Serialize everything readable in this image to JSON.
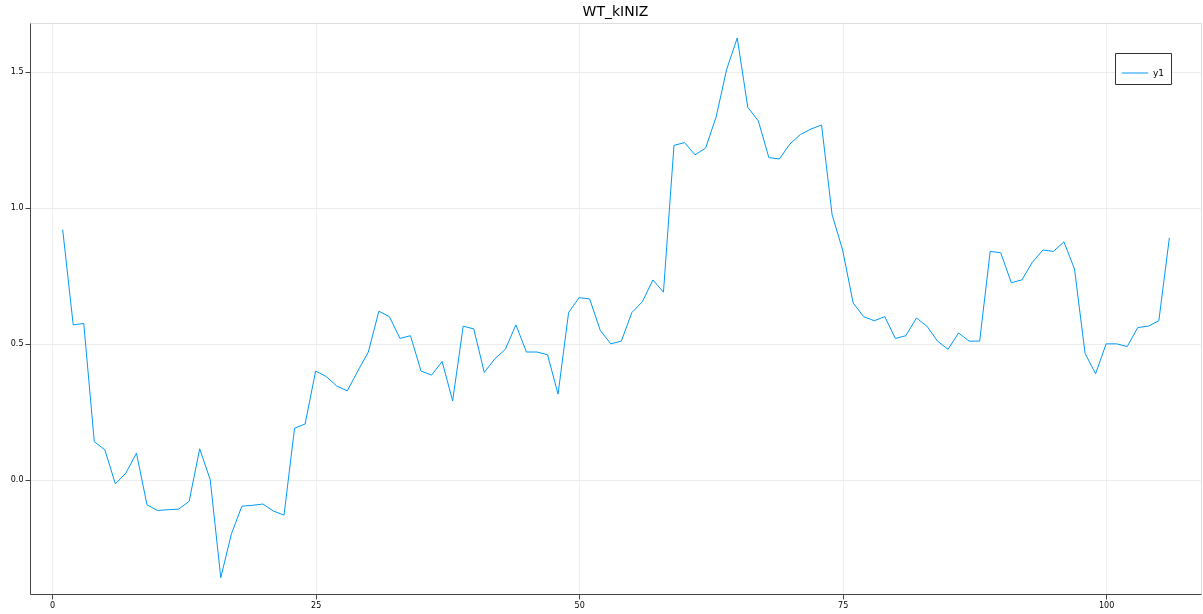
{
  "chart_data": {
    "type": "line",
    "title": "WT_kINIZ",
    "x": [
      1,
      2,
      3,
      4,
      5,
      6,
      7,
      8,
      9,
      10,
      11,
      12,
      13,
      14,
      15,
      16,
      17,
      18,
      19,
      20,
      21,
      22,
      23,
      24,
      25,
      26,
      27,
      28,
      29,
      30,
      31,
      32,
      33,
      34,
      35,
      36,
      37,
      38,
      39,
      40,
      41,
      42,
      43,
      44,
      45,
      46,
      47,
      48,
      49,
      50,
      51,
      52,
      53,
      54,
      55,
      56,
      57,
      58,
      59,
      60,
      61,
      62,
      63,
      64,
      65,
      66,
      67,
      68,
      69,
      70,
      71,
      72,
      73,
      74,
      75,
      76,
      77,
      78,
      79,
      80,
      81,
      82,
      83,
      84,
      85,
      86,
      87,
      88,
      89,
      90,
      91,
      92,
      93,
      94,
      95,
      96,
      97,
      98,
      99,
      100,
      101,
      102,
      103,
      104,
      105,
      106
    ],
    "series": [
      {
        "name": "y1",
        "color": "#009af9",
        "values": [
          0.92,
          0.57,
          0.575,
          0.14,
          0.11,
          -0.015,
          0.025,
          0.098,
          -0.092,
          -0.113,
          -0.11,
          -0.108,
          -0.079,
          0.114,
          0.0,
          -0.36,
          -0.2,
          -0.097,
          -0.094,
          -0.089,
          -0.115,
          -0.13,
          0.19,
          0.205,
          0.4,
          0.38,
          0.345,
          0.327,
          0.4,
          0.47,
          0.62,
          0.6,
          0.52,
          0.53,
          0.4,
          0.385,
          0.435,
          0.29,
          0.565,
          0.555,
          0.395,
          0.445,
          0.48,
          0.57,
          0.47,
          0.47,
          0.46,
          0.315,
          0.615,
          0.67,
          0.665,
          0.55,
          0.5,
          0.51,
          0.615,
          0.655,
          0.735,
          0.69,
          1.23,
          1.24,
          1.195,
          1.22,
          1.335,
          1.51,
          1.625,
          1.37,
          1.32,
          1.185,
          1.18,
          1.235,
          1.27,
          1.29,
          1.305,
          0.975,
          0.845,
          0.65,
          0.6,
          0.585,
          0.6,
          0.52,
          0.53,
          0.595,
          0.565,
          0.51,
          0.48,
          0.54,
          0.51,
          0.51,
          0.84,
          0.835,
          0.725,
          0.735,
          0.8,
          0.845,
          0.84,
          0.875,
          0.775,
          0.465,
          0.39,
          0.5,
          0.5,
          0.49,
          0.56,
          0.565,
          0.585,
          0.89
        ]
      }
    ],
    "xlim": [
      -2.1,
      109
    ],
    "xticks": [
      0,
      25,
      50,
      75,
      100
    ],
    "ylim": [
      -0.42,
      1.68
    ],
    "yticks": [
      {
        "value": 0,
        "label": "0.0"
      },
      {
        "value": 0.5,
        "label": "0.5"
      },
      {
        "value": 1,
        "label": "1.0"
      },
      {
        "value": 1.5,
        "label": "1.5"
      }
    ],
    "grid": true,
    "legend": "top right",
    "marker": "none",
    "line_style": "solid"
  }
}
